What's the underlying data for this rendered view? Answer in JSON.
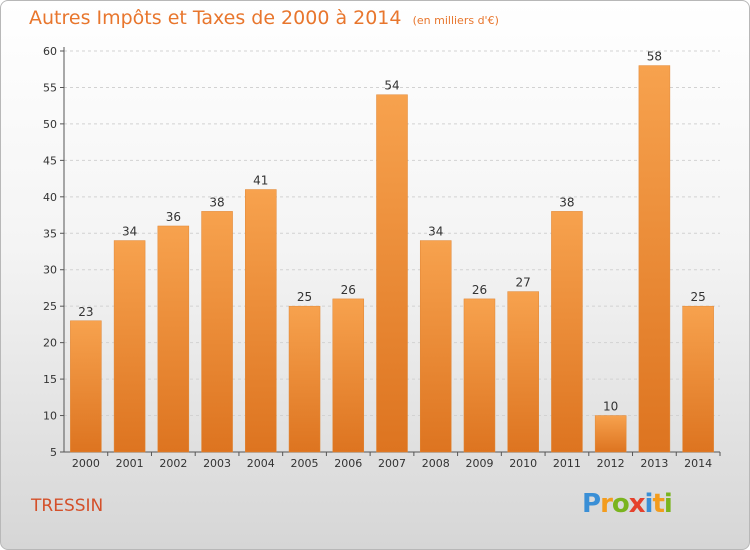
{
  "chart_data": {
    "type": "bar",
    "title": "Autres Impôts et Taxes de 2000 à 2014",
    "subtitle": "(en milliers d'€)",
    "categories": [
      "2000",
      "2001",
      "2002",
      "2003",
      "2004",
      "2005",
      "2006",
      "2007",
      "2008",
      "2009",
      "2010",
      "2011",
      "2012",
      "2013",
      "2014"
    ],
    "values": [
      23,
      34,
      36,
      38,
      41,
      25,
      26,
      54,
      34,
      26,
      27,
      38,
      10,
      58,
      25
    ],
    "ylim": [
      5,
      60
    ],
    "yticks": [
      5,
      10,
      15,
      20,
      25,
      30,
      35,
      40,
      45,
      50,
      55,
      60
    ],
    "grid": true,
    "bar_color": "#f0963e"
  },
  "commune": "TRESSIN",
  "logo": {
    "text": "Proxiti",
    "letters": [
      {
        "ch": "P",
        "color": "#3a8fd6"
      },
      {
        "ch": "r",
        "color": "#f39c1d"
      },
      {
        "ch": "o",
        "color": "#7ab41e"
      },
      {
        "ch": "x",
        "color": "#e5412c"
      },
      {
        "ch": "i",
        "color": "#3a8fd6"
      },
      {
        "ch": "t",
        "color": "#f39c1d"
      },
      {
        "ch": "i",
        "color": "#7ab41e"
      }
    ]
  }
}
